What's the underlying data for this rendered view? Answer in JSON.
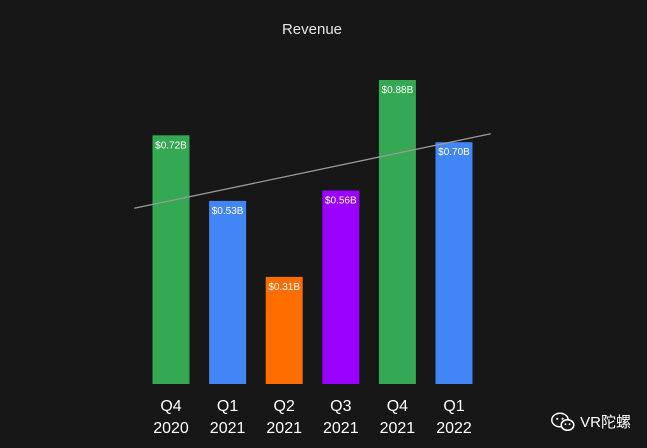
{
  "chart_data": {
    "type": "bar",
    "title": "Revenue",
    "categories": [
      [
        "Q4",
        "2020"
      ],
      [
        "Q1",
        "2021"
      ],
      [
        "Q2",
        "2021"
      ],
      [
        "Q3",
        "2021"
      ],
      [
        "Q4",
        "2021"
      ],
      [
        "Q1",
        "2022"
      ]
    ],
    "values": [
      0.72,
      0.53,
      0.31,
      0.56,
      0.88,
      0.7
    ],
    "data_labels": [
      "$0.72B",
      "$0.53B",
      "$0.31B",
      "$0.56B",
      "$0.88B",
      "$0.70B"
    ],
    "colors": [
      "#34a853",
      "#4285f4",
      "#ff6d01",
      "#9900ff",
      "#34a853",
      "#4285f4"
    ],
    "trendline": true,
    "ylim": [
      0,
      0.88
    ],
    "grid": false,
    "legend": "none"
  },
  "watermark": {
    "text": "VR陀螺",
    "icon": "wechat-icon"
  }
}
